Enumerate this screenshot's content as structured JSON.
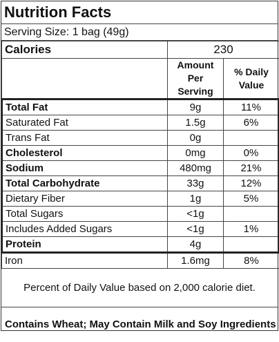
{
  "title": "Nutrition Facts",
  "serving": "Serving Size: 1 bag (49g)",
  "calories": {
    "label": "Calories",
    "value": "230"
  },
  "headers": {
    "amount": "Amount Per Serving",
    "dv": "% Daily Value"
  },
  "rows": [
    {
      "name": "Total Fat",
      "amount": "9g",
      "dv": "11%"
    },
    {
      "name": "Saturated Fat",
      "amount": "1.5g",
      "dv": "6%"
    },
    {
      "name": "Trans Fat",
      "amount": "0g",
      "dv": ""
    },
    {
      "name": "Cholesterol",
      "amount": "0mg",
      "dv": "0%"
    },
    {
      "name": "Sodium",
      "amount": "480mg",
      "dv": "21%"
    },
    {
      "name": "Total Carbohydrate",
      "amount": "33g",
      "dv": "12%"
    },
    {
      "name": "Dietary Fiber",
      "amount": "1g",
      "dv": "5%"
    },
    {
      "name": "Total Sugars",
      "amount": "<1g",
      "dv": ""
    },
    {
      "name": "Includes Added Sugars",
      "amount": "<1g",
      "dv": "1%"
    },
    {
      "name": "Protein",
      "amount": "4g",
      "dv": ""
    },
    {
      "name": "Iron",
      "amount": "1.6mg",
      "dv": "8%"
    }
  ],
  "footnote": "Percent of Daily Value based on 2,000 calorie diet.",
  "allergens": "Contains Wheat; May Contain Milk and Soy Ingredients"
}
